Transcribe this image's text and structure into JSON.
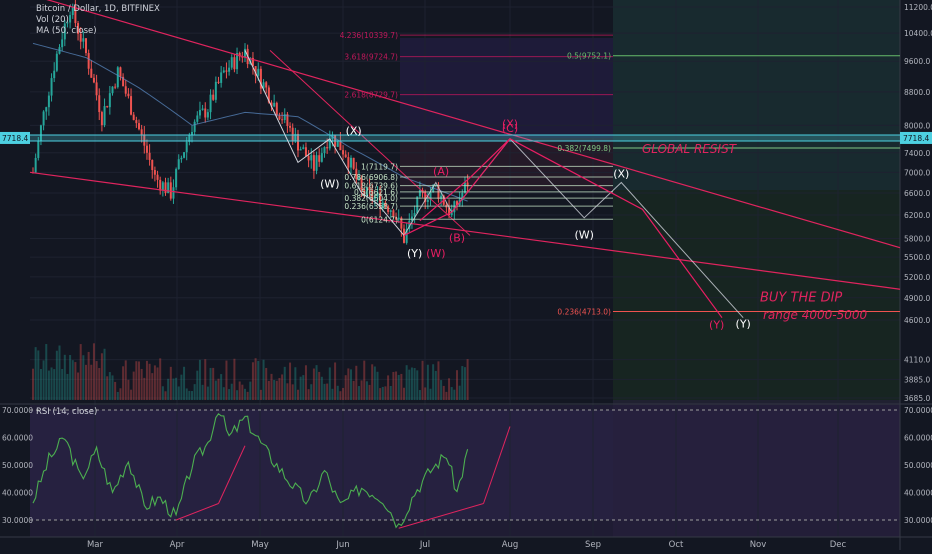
{
  "legend": {
    "symbol": "Bitcoin / Dollar, 1D, BITFINEX",
    "volume": "Vol (20)",
    "ma": "MA (50, close)",
    "rsi": "RSI (14, close)"
  },
  "colors": {
    "background": "#131722",
    "candle_up": "#26a69a",
    "candle_down": "#ef5350",
    "trendline": "#e0245e",
    "wave_pink": "#e91e63",
    "wave_white": "#d1d4dc",
    "resist_cyan": "#4dd0e1",
    "rsi_line": "#4caf50",
    "rsi_bg": "#2a2346"
  },
  "chart_data": [
    {
      "type": "candlestick",
      "title": "Bitcoin / Dollar, 1D, BITFINEX",
      "y_axis": {
        "scale": "log",
        "range": [
          3685,
          11200
        ],
        "ticks": [
          11200,
          10400,
          9600,
          8800,
          8000,
          7400,
          7000,
          6600,
          6200,
          5800,
          5500,
          5200,
          4900,
          4600,
          4110,
          3885,
          3685
        ],
        "tick_labels": [
          "11200.0",
          "10400.0",
          "9600.0",
          "8800.0",
          "8000.0",
          "7400.0",
          "7000.0",
          "6600.0",
          "6200.0",
          "5800.0",
          "5500.0",
          "5200.0",
          "4900.0",
          "4600.0",
          "4110.0",
          "3885.0",
          "3685.0"
        ]
      },
      "x_axis": {
        "tick_labels": [
          "Mar",
          "Apr",
          "May",
          "Jun",
          "Jul",
          "Aug",
          "Sep",
          "Oct",
          "Nov",
          "Dec"
        ]
      },
      "price_label": "7718.4",
      "anchors": [
        {
          "t": 0,
          "v": 7000
        },
        {
          "t": 8,
          "v": 9500
        },
        {
          "t": 14,
          "v": 11200
        },
        {
          "t": 20,
          "v": 9800
        },
        {
          "t": 26,
          "v": 8200
        },
        {
          "t": 32,
          "v": 9300
        },
        {
          "t": 40,
          "v": 7900
        },
        {
          "t": 46,
          "v": 6900
        },
        {
          "t": 52,
          "v": 6600
        },
        {
          "t": 60,
          "v": 8000
        },
        {
          "t": 66,
          "v": 8400
        },
        {
          "t": 72,
          "v": 9300
        },
        {
          "t": 80,
          "v": 9900
        },
        {
          "t": 86,
          "v": 9100
        },
        {
          "t": 92,
          "v": 8400
        },
        {
          "t": 100,
          "v": 7600
        },
        {
          "t": 106,
          "v": 7100
        },
        {
          "t": 112,
          "v": 7800
        },
        {
          "t": 118,
          "v": 7400
        },
        {
          "t": 124,
          "v": 6600
        },
        {
          "t": 130,
          "v": 6500
        },
        {
          "t": 136,
          "v": 6300
        },
        {
          "t": 140,
          "v": 5800
        },
        {
          "t": 146,
          "v": 6500
        },
        {
          "t": 152,
          "v": 6700
        },
        {
          "t": 158,
          "v": 6200
        },
        {
          "t": 164,
          "v": 6800
        }
      ],
      "ma50_anchors": [
        {
          "t": 0,
          "v": 10100
        },
        {
          "t": 20,
          "v": 9700
        },
        {
          "t": 40,
          "v": 8900
        },
        {
          "t": 60,
          "v": 8000
        },
        {
          "t": 80,
          "v": 8300
        },
        {
          "t": 100,
          "v": 8200
        },
        {
          "t": 120,
          "v": 7500
        },
        {
          "t": 140,
          "v": 6900
        },
        {
          "t": 164,
          "v": 6450
        }
      ],
      "fib_levels": [
        {
          "label": "4.236(10339.7)",
          "value": 10339.7
        },
        {
          "label": "3.618(9724.7)",
          "value": 9724.7
        },
        {
          "label": "2.618(8729.7)",
          "value": 8729.7
        },
        {
          "label": "1(7119.7)",
          "value": 7119.7
        },
        {
          "label": "0.786(6906.8)",
          "value": 6906.8
        },
        {
          "label": "0.618(6739.6)",
          "value": 6739.6
        },
        {
          "label": "0.5(6621.6)",
          "value": 6621.6
        },
        {
          "label": "0.382(6504.0)",
          "value": 6504.0
        },
        {
          "label": "0.236(6358.7)",
          "value": 6358.7
        },
        {
          "label": "0(6124.7)",
          "value": 6124.7
        }
      ],
      "retracement_levels": [
        {
          "label": "0.5(9752.1)",
          "value": 9752.1
        },
        {
          "label": "0.382(7499.8)",
          "value": 7499.8
        },
        {
          "label": "0.236(4713.0)",
          "value": 4713.0
        }
      ],
      "resistance_level": 7718.4,
      "wave_labels": {
        "X_upper": "(X)",
        "W_left": "(W)",
        "Y_bottom": "(Y)",
        "W_pink": "(W)",
        "A": "(A)",
        "B": "(B)",
        "C": "(C)",
        "X_pink": "(X)",
        "W_right": "(W)",
        "X_right": "(X)",
        "Y_pink_end": "(Y)",
        "Y_white_end": "(Y)"
      },
      "annotations": {
        "global_resist": "GLOBAL RESIST",
        "buy_the_dip": "BUY THE DIP",
        "range": "range 4000-5000"
      }
    },
    {
      "type": "line",
      "title": "RSI (14, close)",
      "y_axis": {
        "range": [
          30,
          70
        ],
        "ticks": [
          70,
          60,
          50,
          40,
          30
        ],
        "tick_labels": [
          "70.0000",
          "60.0000",
          "50.0000",
          "40.0000",
          "30.0000"
        ],
        "bands": [
          30,
          70
        ]
      },
      "anchors": [
        {
          "t": 0,
          "v": 37
        },
        {
          "t": 6,
          "v": 52
        },
        {
          "t": 12,
          "v": 60
        },
        {
          "t": 18,
          "v": 45
        },
        {
          "t": 24,
          "v": 55
        },
        {
          "t": 30,
          "v": 40
        },
        {
          "t": 36,
          "v": 52
        },
        {
          "t": 42,
          "v": 35
        },
        {
          "t": 48,
          "v": 38
        },
        {
          "t": 54,
          "v": 31
        },
        {
          "t": 60,
          "v": 50
        },
        {
          "t": 66,
          "v": 58
        },
        {
          "t": 70,
          "v": 71
        },
        {
          "t": 74,
          "v": 60
        },
        {
          "t": 80,
          "v": 67
        },
        {
          "t": 88,
          "v": 55
        },
        {
          "t": 96,
          "v": 45
        },
        {
          "t": 104,
          "v": 36
        },
        {
          "t": 110,
          "v": 48
        },
        {
          "t": 116,
          "v": 35
        },
        {
          "t": 124,
          "v": 42
        },
        {
          "t": 132,
          "v": 38
        },
        {
          "t": 138,
          "v": 28
        },
        {
          "t": 144,
          "v": 40
        },
        {
          "t": 150,
          "v": 48
        },
        {
          "t": 156,
          "v": 54
        },
        {
          "t": 160,
          "v": 40
        },
        {
          "t": 164,
          "v": 55
        }
      ]
    }
  ]
}
